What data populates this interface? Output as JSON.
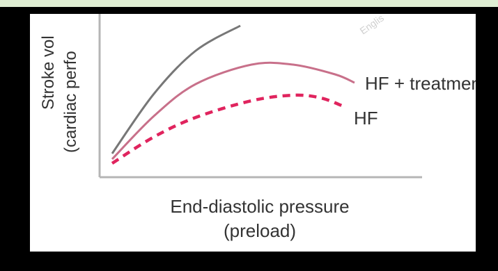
{
  "chart_data": {
    "type": "line",
    "xlabel_line1": "End-diastolic pressure",
    "xlabel_line2": "(preload)",
    "ylabel_line1": "Stroke vol",
    "ylabel_line2": "(cardiac perfo",
    "watermark": "Englis",
    "series": [
      {
        "name": "",
        "color": "#777777",
        "style": "solid",
        "points": [
          [
            0,
            1.2
          ],
          [
            1.5,
            5.5
          ],
          [
            3.0,
            8.6
          ],
          [
            4.6,
            10.4
          ]
        ]
      },
      {
        "name": "HF + treatment",
        "color": "#c8708a",
        "style": "solid",
        "points": [
          [
            0,
            0.8
          ],
          [
            1.5,
            3.9
          ],
          [
            3.0,
            6.2
          ],
          [
            5.0,
            7.6
          ],
          [
            6.5,
            7.6
          ],
          [
            8.0,
            6.9
          ],
          [
            8.7,
            6.3
          ]
        ]
      },
      {
        "name": "HF",
        "color": "#e0245e",
        "style": "dashed",
        "points": [
          [
            0,
            0.5
          ],
          [
            1.5,
            2.4
          ],
          [
            3.0,
            3.8
          ],
          [
            5.0,
            5.0
          ],
          [
            6.5,
            5.4
          ],
          [
            7.5,
            5.2
          ],
          [
            8.3,
            4.6
          ]
        ]
      }
    ],
    "xlim": [
      0,
      10
    ],
    "ylim": [
      0,
      10
    ],
    "grid": false
  }
}
